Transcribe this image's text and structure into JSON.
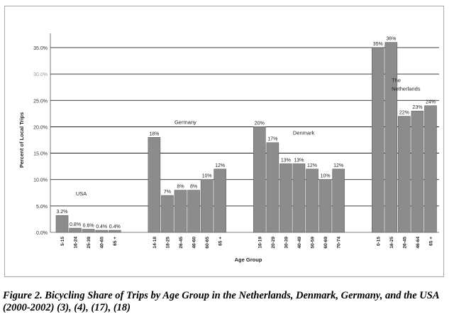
{
  "caption": "Figure 2. Bicycling Share of Trips by Age Group in the Netherlands, Denmark, Germany, and the USA (2000-2002) (3), (4), (17), (18)",
  "chart_data": {
    "type": "bar",
    "xlabel": "Age Group",
    "ylabel": "Percent of Local Trips",
    "ylim": [
      0,
      35
    ],
    "yticks": [
      "0.0%",
      "5.0%",
      "10.0%",
      "15.0%",
      "20.0%",
      "25.0%",
      "30.0%",
      "35.0%"
    ],
    "grid": true,
    "bar_color": "#8c8c8c",
    "groups": [
      {
        "name": "USA",
        "categories": [
          "5-15",
          "16-24",
          "25-39",
          "40-65",
          "65 +"
        ],
        "values": [
          3.2,
          0.8,
          0.6,
          0.4,
          0.4
        ],
        "labels": [
          "3.2%",
          "0.8%",
          "0.6%",
          "0.4%",
          "0.4%"
        ]
      },
      {
        "name": "Germany",
        "categories": [
          "14-18",
          "18-25",
          "26-45",
          "46-60",
          "60-65",
          "65 +"
        ],
        "values": [
          18,
          7,
          8,
          8,
          10,
          12
        ],
        "labels": [
          "18%",
          "7%",
          "8%",
          "8%",
          "10%",
          "12%"
        ]
      },
      {
        "name": "Denmark",
        "categories": [
          "16-19",
          "20-29",
          "30-39",
          "40-49",
          "50-59",
          "60-69",
          "70-74"
        ],
        "values": [
          20,
          17,
          13,
          13,
          12,
          10,
          12
        ],
        "labels": [
          "20%",
          "17%",
          "13%",
          "13%",
          "12%",
          "10%",
          "12%"
        ]
      },
      {
        "name": "The Netherlands",
        "name_lines": [
          "The",
          "Netherlands"
        ],
        "categories": [
          "0-15",
          "16-25",
          "26-45",
          "46-64",
          "65 +"
        ],
        "values": [
          35,
          36,
          22,
          23,
          24
        ],
        "labels": [
          "35%",
          "36%",
          "22%",
          "23%",
          "24%"
        ]
      }
    ]
  }
}
